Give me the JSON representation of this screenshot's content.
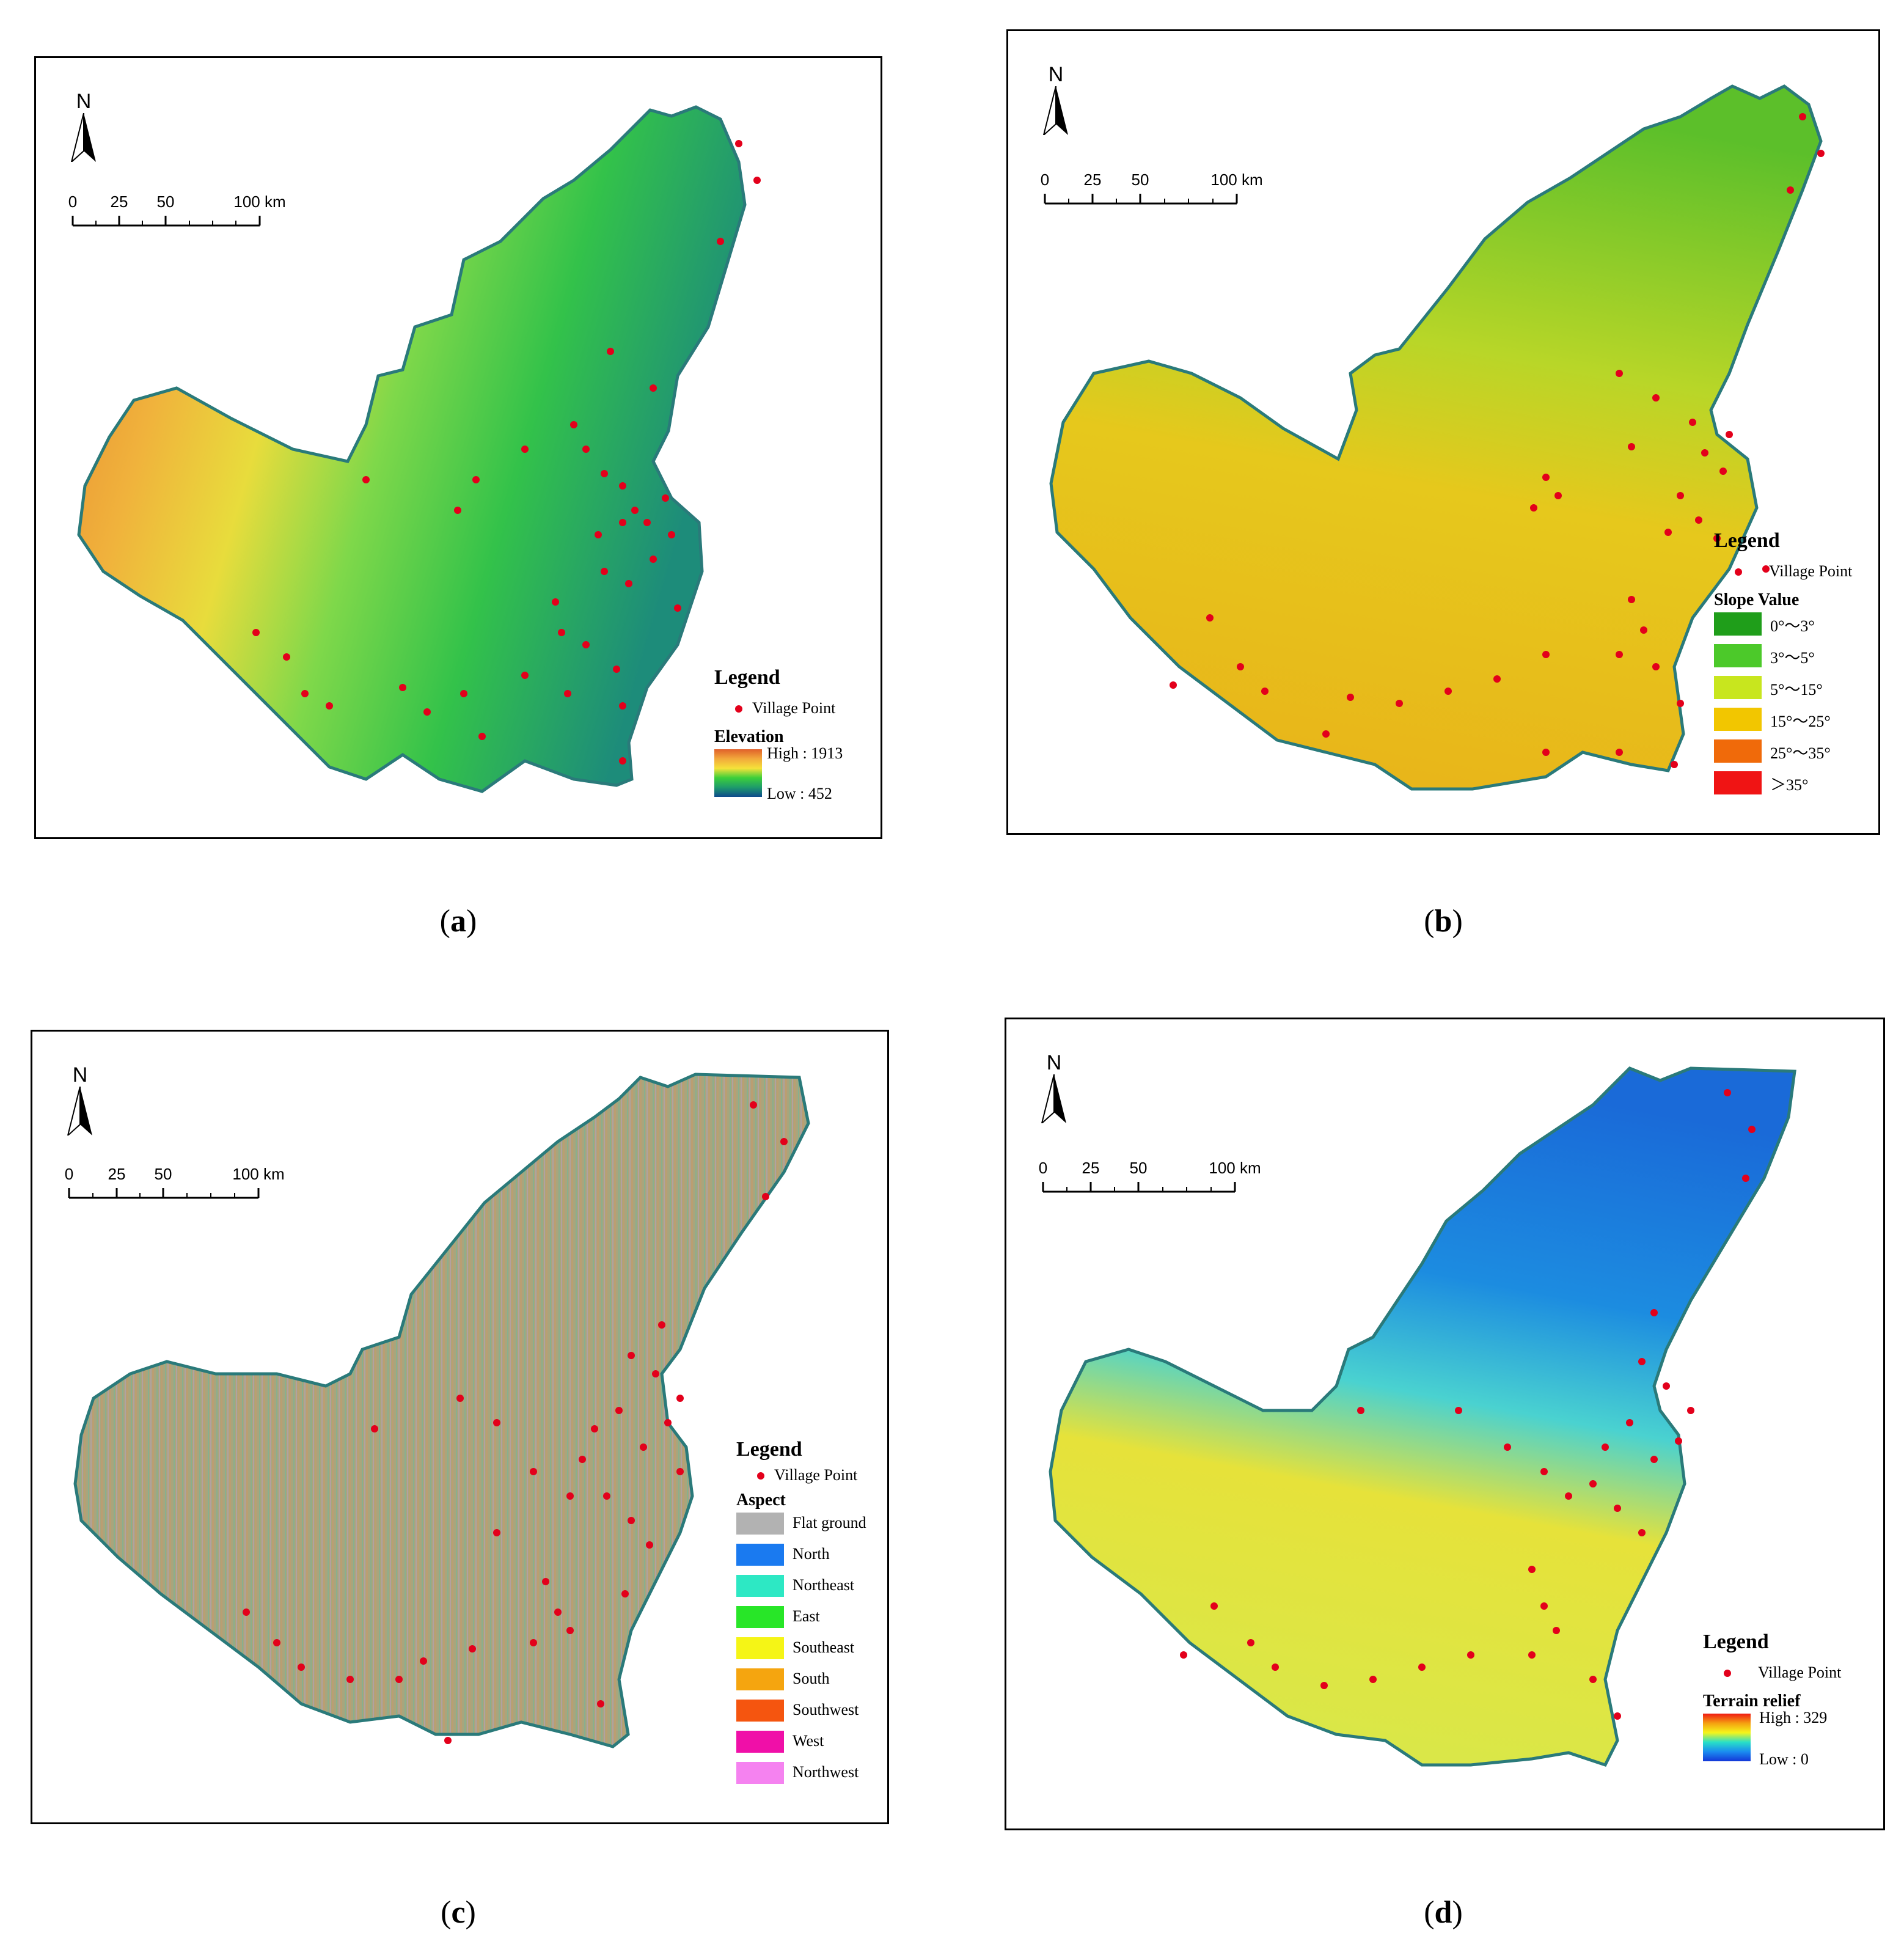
{
  "north_label": "N",
  "scale": {
    "ticks": [
      "0",
      "25",
      "50",
      "100 km"
    ]
  },
  "legend_title": "Legend",
  "village_label": "Village Point",
  "village_color": "#e3001b",
  "panels": {
    "a": {
      "caption_open": "(",
      "caption_letter": "a",
      "caption_close": ")",
      "legend_sub": "Elevation",
      "high": "High : 1913",
      "low": "Low : 452",
      "gradient": [
        "#e0602a",
        "#f2a93b",
        "#f5e23a",
        "#3ccf3a",
        "#1e9b6b",
        "#0d4a8c"
      ],
      "fill": "#4cc24a"
    },
    "b": {
      "caption_open": "(",
      "caption_letter": "b",
      "caption_close": ")",
      "legend_sub": "Slope Value",
      "classes": [
        {
          "label": "0°～3°",
          "color": "#1f9e1a"
        },
        {
          "label": "3°～5°",
          "color": "#4cc92a"
        },
        {
          "label": "5°～15°",
          "color": "#c8e61e"
        },
        {
          "label": "15°～25°",
          "color": "#f2c600"
        },
        {
          "label": "25°～35°",
          "color": "#f06a0a"
        },
        {
          "label": "＞35°",
          "color": "#f01414"
        }
      ],
      "fill": "#e0c51a"
    },
    "c": {
      "caption_open": "(",
      "caption_letter": "c",
      "caption_close": ")",
      "legend_sub": "Aspect",
      "classes": [
        {
          "label": "Flat ground",
          "color": "#b2b2b2"
        },
        {
          "label": "North",
          "color": "#1a7af0"
        },
        {
          "label": "Northeast",
          "color": "#2de8c4"
        },
        {
          "label": "East",
          "color": "#28e628"
        },
        {
          "label": "Southeast",
          "color": "#f5f516"
        },
        {
          "label": "South",
          "color": "#f5a50f"
        },
        {
          "label": "Southwest",
          "color": "#f5550f"
        },
        {
          "label": "West",
          "color": "#f00fa8"
        },
        {
          "label": "Northwest",
          "color": "#f582f0"
        }
      ],
      "fill": "#a8a27a"
    },
    "d": {
      "caption_open": "(",
      "caption_letter": "d",
      "caption_close": ")",
      "legend_sub": "Terrain relief",
      "high": "High : 329",
      "low": "Low : 0",
      "gradient": [
        "#f01a14",
        "#f5a010",
        "#f5f51a",
        "#28e0c8",
        "#1a8cf0",
        "#1437d8"
      ],
      "fill": "#e8e050"
    }
  }
}
